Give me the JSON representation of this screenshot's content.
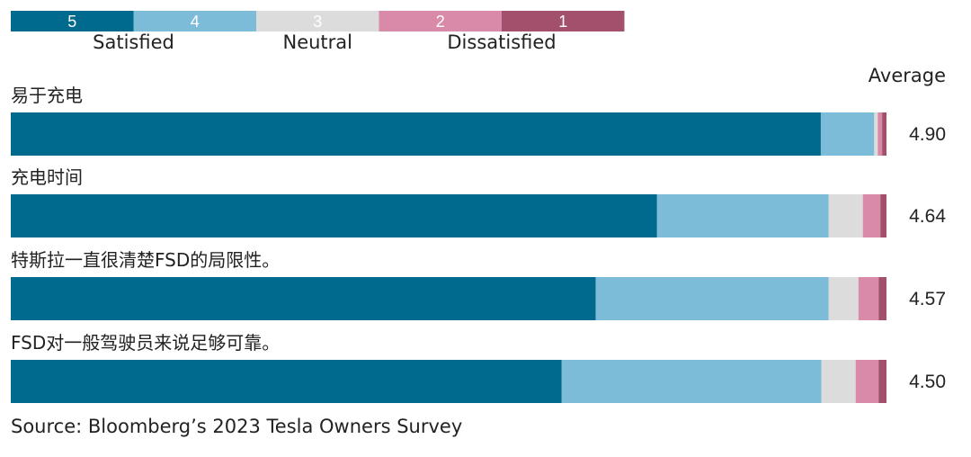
{
  "chart_data": {
    "type": "bar",
    "orientation": "horizontal-stacked-100",
    "legend": {
      "position": "top-left",
      "scale": [
        "5",
        "4",
        "3",
        "2",
        "1"
      ],
      "labels": [
        "Satisfied",
        "Neutral",
        "Dissatisfied"
      ]
    },
    "colors": [
      "#006a8e",
      "#7dbcd9",
      "#dcdcdc",
      "#d98aa8",
      "#a3506c"
    ],
    "average_header": "Average",
    "categories": [
      "易于充电",
      "充电时间",
      "特斯拉一直很清楚FSD的局限性。",
      "FSD对一般驾驶员来说足够可靠。"
    ],
    "series": [
      {
        "name": "5",
        "values": [
          0.925,
          0.738,
          0.668,
          0.626
        ]
      },
      {
        "name": "4",
        "values": [
          0.061,
          0.196,
          0.266,
          0.295
        ]
      },
      {
        "name": "3",
        "values": [
          0.004,
          0.039,
          0.034,
          0.039
        ]
      },
      {
        "name": "2",
        "values": [
          0.005,
          0.02,
          0.023,
          0.026
        ]
      },
      {
        "name": "1",
        "values": [
          0.005,
          0.007,
          0.009,
          0.009
        ]
      }
    ],
    "averages": [
      "4.90",
      "4.64",
      "4.57",
      "4.50"
    ],
    "source": "Source: Bloomberg’s 2023 Tesla Owners Survey"
  }
}
